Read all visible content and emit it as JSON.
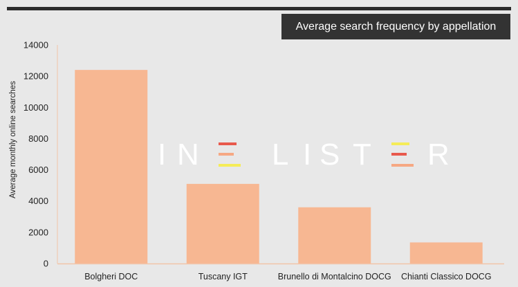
{
  "chart_data": {
    "type": "bar",
    "title": "Average search frequency by appellation",
    "xlabel": "",
    "ylabel": "Average monthly online searches",
    "categories": [
      "Bolgheri DOC",
      "Tuscany IGT",
      "Brunello di Montalcino DOCG",
      "Chianti Classico DOCG"
    ],
    "values": [
      12400,
      5100,
      3600,
      1350
    ],
    "ylim": [
      0,
      14000
    ],
    "yticks": [
      0,
      2000,
      4000,
      6000,
      8000,
      10000,
      12000,
      14000
    ],
    "ytick_labels": [
      "0",
      "2000",
      "4000",
      "6000",
      "8000",
      "10000",
      "12000",
      "14000"
    ],
    "grid": false,
    "colors": {
      "bar": "#f7b792",
      "axis": "#f2c4a8"
    }
  },
  "watermark": {
    "text": "WINE LISTER",
    "colors": [
      "#e8594c",
      "#f6a883",
      "#f5ec57"
    ]
  }
}
